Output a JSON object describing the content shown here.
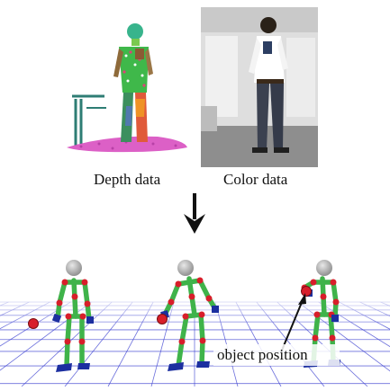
{
  "labels": {
    "depth": "Depth data",
    "color": "Color data",
    "object_position": "object position"
  },
  "colors": {
    "limb": "#3fb34a",
    "joint": "#d81e2a",
    "head": "#a9a9a9",
    "grid": "#3a3fd0",
    "foot": "#1c2fa0",
    "arrow": "#111111",
    "point_cloud_floor": "#d84fc0",
    "photo_background": "#dedede"
  }
}
